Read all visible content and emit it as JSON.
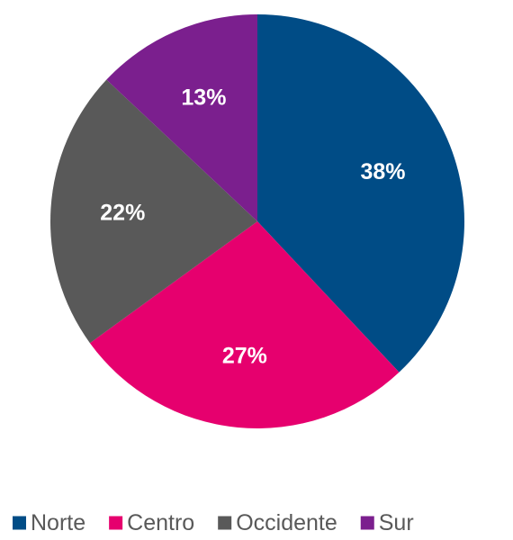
{
  "chart_data": {
    "type": "pie",
    "categories": [
      "Norte",
      "Centro",
      "Occidente",
      "Sur"
    ],
    "values": [
      38,
      27,
      22,
      13
    ],
    "labels": [
      "38%",
      "27%",
      "22%",
      "13%"
    ],
    "colors": [
      "#004C86",
      "#E6006E",
      "#595959",
      "#7B1F8E"
    ],
    "start": "12 o'clock",
    "direction": "clockwise",
    "legend_position": "bottom",
    "title": ""
  }
}
